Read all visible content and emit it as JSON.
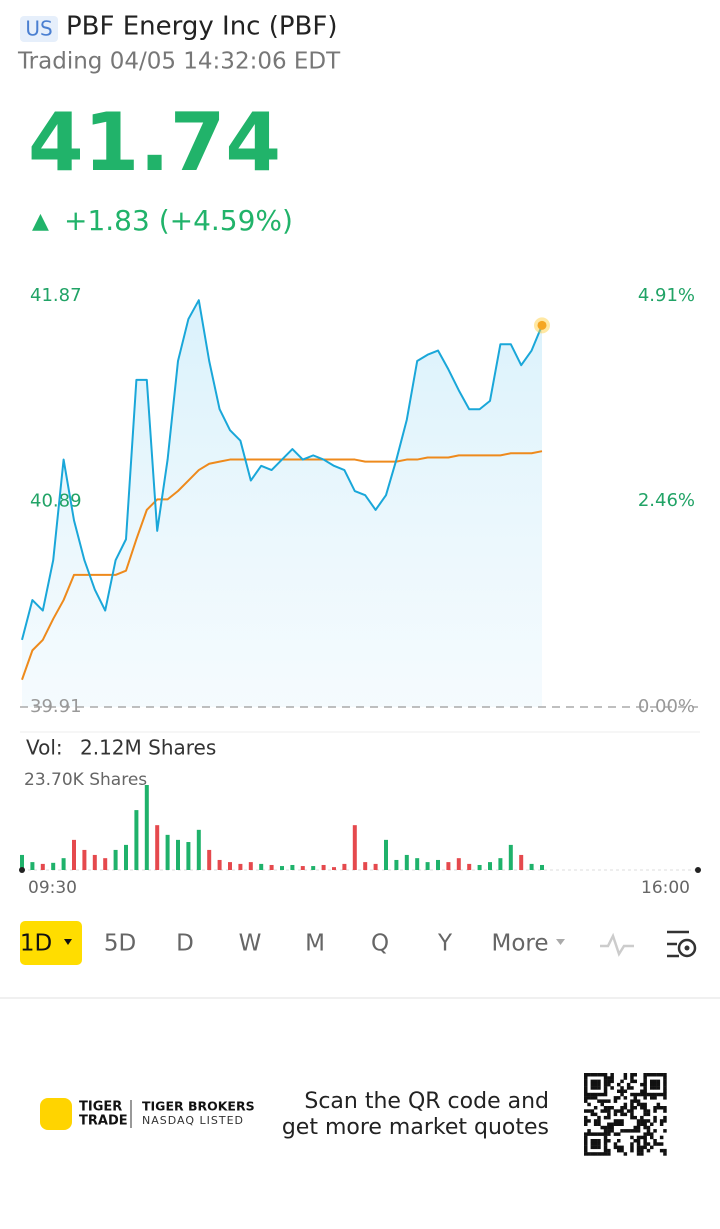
{
  "header": {
    "market": "US",
    "name": "PBF Energy Inc (PBF)",
    "status": "Trading 04/05 14:32:06 EDT"
  },
  "quote": {
    "price": "41.74",
    "arrow": "▲",
    "change": "+1.83 (+4.59%)"
  },
  "chart_data": [
    {
      "type": "line",
      "ylim": [
        39.91,
        41.87
      ],
      "yticks": [
        41.87,
        40.89,
        39.91
      ],
      "y2lim": [
        0,
        4.91
      ],
      "y2ticks": [
        {
          "value": 4.91,
          "label": "4.91%"
        },
        {
          "value": 2.46,
          "label": "2.46%"
        },
        {
          "value": 0,
          "label": "0.00%"
        }
      ],
      "series": [
        {
          "color": "#1aa7d9",
          "values": [
            40.23,
            40.42,
            40.37,
            40.61,
            41.09,
            40.8,
            40.61,
            40.47,
            40.37,
            40.61,
            40.71,
            41.47,
            41.47,
            40.75,
            41.09,
            41.56,
            41.76,
            41.85,
            41.56,
            41.33,
            41.23,
            41.18,
            40.99,
            41.06,
            41.04,
            41.09,
            41.14,
            41.09,
            41.11,
            41.09,
            41.06,
            41.04,
            40.94,
            40.92,
            40.85,
            40.92,
            41.09,
            41.28,
            41.56,
            41.59,
            41.61,
            41.52,
            41.42,
            41.33,
            41.33,
            41.37,
            41.64,
            41.64,
            41.54,
            41.61,
            41.73,
            null,
            null,
            null,
            null,
            null,
            null,
            null,
            null,
            null,
            null,
            null,
            null,
            null,
            null,
            null
          ]
        },
        {
          "color": "#ee8a1c",
          "values": [
            40.04,
            40.18,
            40.23,
            40.33,
            40.42,
            40.54,
            40.54,
            40.54,
            40.54,
            40.54,
            40.56,
            40.71,
            40.85,
            40.9,
            40.9,
            40.94,
            40.99,
            41.04,
            41.07,
            41.08,
            41.09,
            41.09,
            41.09,
            41.09,
            41.09,
            41.09,
            41.09,
            41.09,
            41.09,
            41.09,
            41.09,
            41.09,
            41.09,
            41.08,
            41.08,
            41.08,
            41.08,
            41.09,
            41.09,
            41.1,
            41.1,
            41.1,
            41.11,
            41.11,
            41.11,
            41.11,
            41.11,
            41.12,
            41.12,
            41.12,
            41.13,
            null,
            null,
            null,
            null,
            null,
            null,
            null,
            null,
            null,
            null,
            null,
            null,
            null,
            null,
            null
          ]
        }
      ]
    },
    {
      "type": "bar",
      "label": "Vol:",
      "total": "2.12M Shares",
      "ylim": [
        0,
        23.7
      ],
      "yticks": [
        {
          "value": 23.7,
          "label": "23.70K Shares"
        }
      ],
      "x_labels": [
        "09:30",
        "16:00"
      ],
      "up_color": "#1fb26b",
      "down_color": "#e5494d",
      "values": [
        4.2,
        2.2,
        1.7,
        2.0,
        3.3,
        8.4,
        5.6,
        4.2,
        3.3,
        5.6,
        7.0,
        16.7,
        23.7,
        12.5,
        9.8,
        8.4,
        7.8,
        11.2,
        5.6,
        2.8,
        2.2,
        1.7,
        2.2,
        1.7,
        1.4,
        1.1,
        1.4,
        1.1,
        1.1,
        1.4,
        0.8,
        1.7,
        12.5,
        2.2,
        1.7,
        8.4,
        2.8,
        4.2,
        3.3,
        2.2,
        2.8,
        2.2,
        3.3,
        1.7,
        1.4,
        2.2,
        3.3,
        7.0,
        4.2,
        1.7,
        1.4,
        null,
        null,
        null,
        null,
        null,
        null,
        null,
        null,
        null,
        null,
        null,
        null,
        null,
        null,
        null
      ]
    }
  ],
  "periods": [
    "1D",
    "5D",
    "D",
    "W",
    "M",
    "Q",
    "Y",
    "More"
  ],
  "footer": {
    "brand1": "TIGER",
    "brand2": "TRADE",
    "broker": "TIGER BROKERS",
    "listed": "NASDAQ LISTED",
    "scan1": "Scan the QR code and",
    "scan2": "get more market quotes"
  }
}
